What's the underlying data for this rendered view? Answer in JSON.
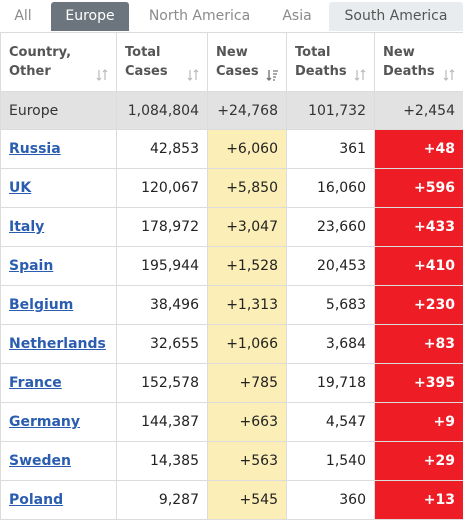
{
  "tabs": [
    "All",
    "Europe",
    "North America",
    "Asia",
    "South America"
  ],
  "headers": [
    [
      "Country,",
      "Other"
    ],
    [
      "Total",
      "Cases"
    ],
    [
      "New",
      "Cases"
    ],
    [
      "Total",
      "Deaths"
    ],
    [
      "New",
      "Deaths"
    ]
  ],
  "total_row": {
    "country": "Europe",
    "total_cases": "1,084,804",
    "new_cases": "+24,768",
    "total_deaths": "101,732",
    "new_deaths": "+2,454"
  },
  "rows": [
    {
      "country": "Russia",
      "total_cases": "42,853",
      "new_cases": "+6,060",
      "total_deaths": "361",
      "new_deaths": "+48"
    },
    {
      "country": "UK",
      "total_cases": "120,067",
      "new_cases": "+5,850",
      "total_deaths": "16,060",
      "new_deaths": "+596"
    },
    {
      "country": "Italy",
      "total_cases": "178,972",
      "new_cases": "+3,047",
      "total_deaths": "23,660",
      "new_deaths": "+433"
    },
    {
      "country": "Spain",
      "total_cases": "195,944",
      "new_cases": "+1,528",
      "total_deaths": "20,453",
      "new_deaths": "+410"
    },
    {
      "country": "Belgium",
      "total_cases": "38,496",
      "new_cases": "+1,313",
      "total_deaths": "5,683",
      "new_deaths": "+230"
    },
    {
      "country": "Netherlands",
      "total_cases": "32,655",
      "new_cases": "+1,066",
      "total_deaths": "3,684",
      "new_deaths": "+83"
    },
    {
      "country": "France",
      "total_cases": "152,578",
      "new_cases": "+785",
      "total_deaths": "19,718",
      "new_deaths": "+395"
    },
    {
      "country": "Germany",
      "total_cases": "144,387",
      "new_cases": "+663",
      "total_deaths": "4,547",
      "new_deaths": "+9"
    },
    {
      "country": "Sweden",
      "total_cases": "14,385",
      "new_cases": "+563",
      "total_deaths": "1,540",
      "new_deaths": "+29"
    },
    {
      "country": "Poland",
      "total_cases": "9,287",
      "new_cases": "+545",
      "total_deaths": "360",
      "new_deaths": "+13"
    }
  ],
  "colors": {
    "new_cases_bg": "#fbeeb6",
    "new_deaths_bg": "#ee1d25",
    "active_tab": "#6c757d",
    "link": "#2a5db0"
  },
  "sort_icons": [
    "sort-neutral-icon",
    "sort-neutral-icon",
    "sort-descending-icon",
    "sort-neutral-icon",
    "sort-neutral-icon"
  ]
}
